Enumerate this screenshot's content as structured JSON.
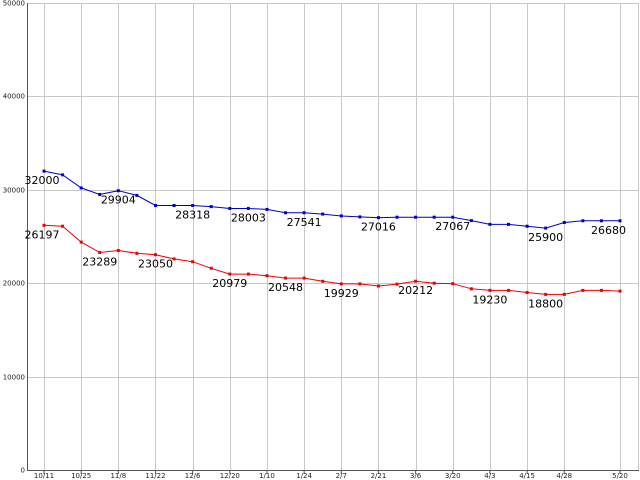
{
  "chart_data": {
    "type": "line",
    "ylim": [
      0,
      50000
    ],
    "yticks": [
      "0",
      "10000",
      "20000",
      "30000",
      "40000",
      "50000"
    ],
    "grid": true,
    "x": [
      "10/11",
      "10/18",
      "10/25",
      "11/1",
      "11/8",
      "11/15",
      "11/22",
      "11/29",
      "12/6",
      "12/13",
      "12/20",
      "12/27",
      "1/10",
      "1/17",
      "1/24",
      "1/31",
      "2/7",
      "2/14",
      "2/21",
      "2/28",
      "3/6",
      "3/13",
      "3/20",
      "3/27",
      "4/3",
      "4/10",
      "4/15",
      "4/22",
      "4/28",
      "5/6",
      "5/13",
      "5/20"
    ],
    "xticks": [
      "10/11",
      "10/25",
      "11/8",
      "11/22",
      "12/6",
      "12/20",
      "1/10",
      "1/24",
      "2/7",
      "2/21",
      "3/6",
      "3/20",
      "4/3",
      "4/15",
      "4/28",
      "5/20"
    ],
    "series": [
      {
        "color": "#0000cc",
        "values": [
          32000,
          31600,
          30200,
          29500,
          29904,
          29400,
          28318,
          28318,
          28318,
          28200,
          28003,
          28003,
          27900,
          27541,
          27541,
          27400,
          27200,
          27100,
          27016,
          27067,
          27067,
          27067,
          27067,
          26700,
          26300,
          26300,
          26100,
          25900,
          26500,
          26680,
          26680,
          26680
        ],
        "labels": [
          "32000",
          "29904",
          "28318",
          "28003",
          "27541",
          "27016",
          "27067",
          "25900",
          "26680"
        ],
        "label_idx": [
          0,
          4,
          8,
          11,
          14,
          18,
          22,
          27,
          31
        ]
      },
      {
        "color": "#ee0000",
        "values": [
          26197,
          26100,
          24400,
          23289,
          23500,
          23200,
          23050,
          22600,
          22300,
          21600,
          20979,
          20979,
          20800,
          20548,
          20548,
          20200,
          19929,
          19929,
          19700,
          19900,
          20212,
          20000,
          19950,
          19400,
          19230,
          19230,
          19000,
          18800,
          18800,
          19230,
          19230,
          19150
        ],
        "labels": [
          "26197",
          "23289",
          "23050",
          "20979",
          "20548",
          "19929",
          "20212",
          "19230",
          "18800"
        ],
        "label_idx": [
          0,
          3,
          6,
          10,
          13,
          16,
          20,
          24,
          27
        ]
      }
    ]
  }
}
